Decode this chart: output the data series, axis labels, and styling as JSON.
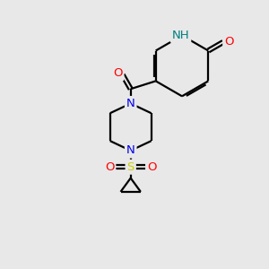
{
  "background_color": "#e8e8e8",
  "bond_color": "#000000",
  "atom_colors": {
    "N": "#0000ee",
    "O": "#ff0000",
    "S": "#cccc00",
    "H": "#008080",
    "C": "#000000"
  },
  "line_width": 1.6,
  "font_size": 9.5,
  "fig_size": [
    3.0,
    3.0
  ],
  "dpi": 100
}
